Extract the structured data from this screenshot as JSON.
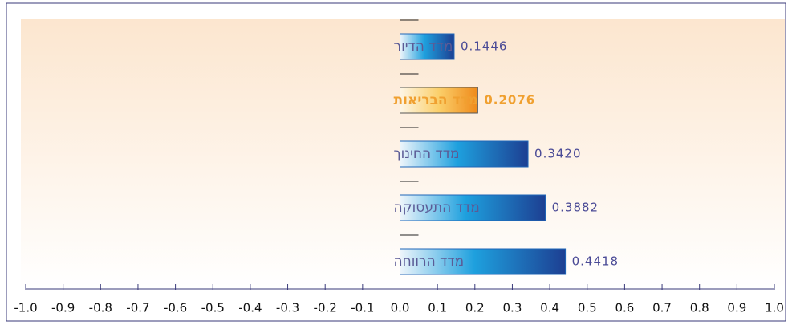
{
  "chart_data": {
    "type": "bar",
    "orientation": "horizontal",
    "categories": [
      "מדד הדיור",
      "מדד הבריאות",
      "מדד החינוך",
      "מדד התעסוקה",
      "מדד הרווחה"
    ],
    "values": [
      0.1446,
      0.2076,
      0.342,
      0.3882,
      0.4418
    ],
    "value_labels": [
      "0.1446",
      "0.2076",
      "0.3420",
      "0.3882",
      "0.4418"
    ],
    "color": "#1f66b8",
    "highlight_index": 1,
    "highlight_color": "#f0a030",
    "xlim": [
      -1.0,
      1.0
    ],
    "xticks": [
      {
        "value": -1.0,
        "label": "-1.0"
      },
      -0.9,
      -0.8,
      -0.7,
      -0.6,
      -0.5,
      -0.4,
      -0.3,
      -0.2,
      -0.1,
      {
        "value": 0.0,
        "label": "0.0"
      },
      0.1,
      0.2,
      0.3,
      0.4,
      0.5,
      0.6,
      0.7,
      0.8,
      0.9,
      {
        "value": 1.0,
        "label": "1.0"
      }
    ]
  }
}
